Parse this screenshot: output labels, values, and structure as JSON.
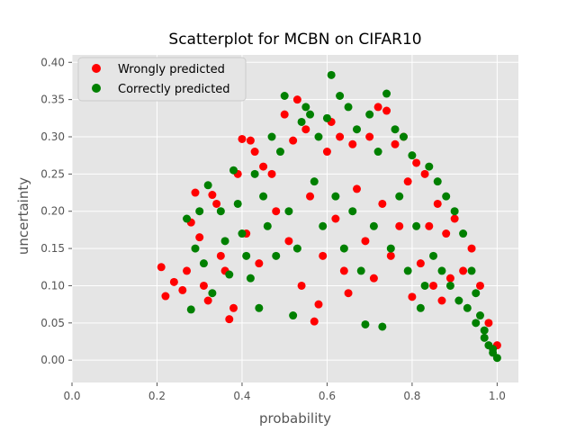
{
  "chart_data": {
    "type": "scatter",
    "title": "Scatterplot for MCBN on CIFAR10",
    "xlabel": "probability",
    "ylabel": "uncertainty",
    "xlim": [
      0.0,
      1.05
    ],
    "ylim": [
      -0.03,
      0.41
    ],
    "xticks": [
      "0.0",
      "0.2",
      "0.4",
      "0.6",
      "0.8",
      "1.0"
    ],
    "yticks": [
      "0.00",
      "0.05",
      "0.10",
      "0.15",
      "0.20",
      "0.25",
      "0.30",
      "0.35",
      "0.40"
    ],
    "grid": true,
    "legend_position": "top-left",
    "background_color": "#e5e5e5",
    "series": [
      {
        "name": "Wrongly predicted",
        "color": "#ff0000",
        "points": [
          [
            0.21,
            0.125
          ],
          [
            0.22,
            0.086
          ],
          [
            0.24,
            0.105
          ],
          [
            0.26,
            0.094
          ],
          [
            0.27,
            0.12
          ],
          [
            0.28,
            0.185
          ],
          [
            0.29,
            0.225
          ],
          [
            0.3,
            0.165
          ],
          [
            0.31,
            0.1
          ],
          [
            0.32,
            0.08
          ],
          [
            0.33,
            0.222
          ],
          [
            0.34,
            0.21
          ],
          [
            0.35,
            0.14
          ],
          [
            0.36,
            0.12
          ],
          [
            0.37,
            0.055
          ],
          [
            0.38,
            0.07
          ],
          [
            0.39,
            0.25
          ],
          [
            0.4,
            0.297
          ],
          [
            0.42,
            0.295
          ],
          [
            0.43,
            0.28
          ],
          [
            0.45,
            0.26
          ],
          [
            0.47,
            0.25
          ],
          [
            0.5,
            0.33
          ],
          [
            0.52,
            0.295
          ],
          [
            0.53,
            0.35
          ],
          [
            0.55,
            0.31
          ],
          [
            0.57,
            0.052
          ],
          [
            0.58,
            0.075
          ],
          [
            0.6,
            0.28
          ],
          [
            0.61,
            0.32
          ],
          [
            0.63,
            0.3
          ],
          [
            0.65,
            0.09
          ],
          [
            0.66,
            0.29
          ],
          [
            0.7,
            0.3
          ],
          [
            0.72,
            0.34
          ],
          [
            0.74,
            0.335
          ],
          [
            0.76,
            0.29
          ],
          [
            0.78,
            0.3
          ],
          [
            0.8,
            0.085
          ],
          [
            0.81,
            0.265
          ],
          [
            0.83,
            0.25
          ],
          [
            0.85,
            0.1
          ],
          [
            0.86,
            0.21
          ],
          [
            0.88,
            0.17
          ],
          [
            0.9,
            0.19
          ],
          [
            0.92,
            0.12
          ],
          [
            0.94,
            0.15
          ],
          [
            0.96,
            0.1
          ],
          [
            0.98,
            0.05
          ],
          [
            1.0,
            0.02
          ],
          [
            0.41,
            0.17
          ],
          [
            0.44,
            0.13
          ],
          [
            0.48,
            0.2
          ],
          [
            0.51,
            0.16
          ],
          [
            0.54,
            0.1
          ],
          [
            0.56,
            0.22
          ],
          [
            0.59,
            0.14
          ],
          [
            0.62,
            0.19
          ],
          [
            0.64,
            0.12
          ],
          [
            0.67,
            0.23
          ],
          [
            0.69,
            0.16
          ],
          [
            0.71,
            0.11
          ],
          [
            0.73,
            0.21
          ],
          [
            0.75,
            0.14
          ],
          [
            0.77,
            0.18
          ],
          [
            0.79,
            0.24
          ],
          [
            0.82,
            0.13
          ],
          [
            0.84,
            0.18
          ],
          [
            0.87,
            0.08
          ],
          [
            0.89,
            0.11
          ]
        ]
      },
      {
        "name": "Correctly predicted",
        "color": "#008000",
        "points": [
          [
            0.27,
            0.19
          ],
          [
            0.28,
            0.068
          ],
          [
            0.29,
            0.15
          ],
          [
            0.3,
            0.2
          ],
          [
            0.31,
            0.13
          ],
          [
            0.32,
            0.235
          ],
          [
            0.33,
            0.09
          ],
          [
            0.35,
            0.2
          ],
          [
            0.36,
            0.16
          ],
          [
            0.37,
            0.115
          ],
          [
            0.38,
            0.255
          ],
          [
            0.39,
            0.21
          ],
          [
            0.4,
            0.17
          ],
          [
            0.41,
            0.14
          ],
          [
            0.43,
            0.25
          ],
          [
            0.44,
            0.07
          ],
          [
            0.45,
            0.22
          ],
          [
            0.47,
            0.3
          ],
          [
            0.49,
            0.28
          ],
          [
            0.5,
            0.355
          ],
          [
            0.52,
            0.06
          ],
          [
            0.54,
            0.32
          ],
          [
            0.55,
            0.34
          ],
          [
            0.56,
            0.33
          ],
          [
            0.58,
            0.3
          ],
          [
            0.6,
            0.325
          ],
          [
            0.61,
            0.383
          ],
          [
            0.63,
            0.355
          ],
          [
            0.65,
            0.34
          ],
          [
            0.67,
            0.31
          ],
          [
            0.69,
            0.048
          ],
          [
            0.7,
            0.33
          ],
          [
            0.72,
            0.28
          ],
          [
            0.73,
            0.045
          ],
          [
            0.74,
            0.358
          ],
          [
            0.76,
            0.31
          ],
          [
            0.78,
            0.3
          ],
          [
            0.8,
            0.275
          ],
          [
            0.82,
            0.07
          ],
          [
            0.84,
            0.26
          ],
          [
            0.86,
            0.24
          ],
          [
            0.88,
            0.22
          ],
          [
            0.9,
            0.2
          ],
          [
            0.92,
            0.17
          ],
          [
            0.94,
            0.12
          ],
          [
            0.95,
            0.09
          ],
          [
            0.96,
            0.06
          ],
          [
            0.97,
            0.04
          ],
          [
            0.98,
            0.02
          ],
          [
            0.99,
            0.01
          ],
          [
            1.0,
            0.003
          ],
          [
            0.42,
            0.11
          ],
          [
            0.46,
            0.18
          ],
          [
            0.48,
            0.14
          ],
          [
            0.51,
            0.2
          ],
          [
            0.53,
            0.15
          ],
          [
            0.57,
            0.24
          ],
          [
            0.59,
            0.18
          ],
          [
            0.62,
            0.22
          ],
          [
            0.64,
            0.15
          ],
          [
            0.66,
            0.2
          ],
          [
            0.68,
            0.12
          ],
          [
            0.71,
            0.18
          ],
          [
            0.75,
            0.15
          ],
          [
            0.77,
            0.22
          ],
          [
            0.79,
            0.12
          ],
          [
            0.81,
            0.18
          ],
          [
            0.83,
            0.1
          ],
          [
            0.85,
            0.14
          ],
          [
            0.87,
            0.12
          ],
          [
            0.89,
            0.1
          ],
          [
            0.91,
            0.08
          ],
          [
            0.93,
            0.07
          ],
          [
            0.95,
            0.05
          ],
          [
            0.97,
            0.03
          ],
          [
            0.99,
            0.015
          ]
        ]
      }
    ]
  }
}
